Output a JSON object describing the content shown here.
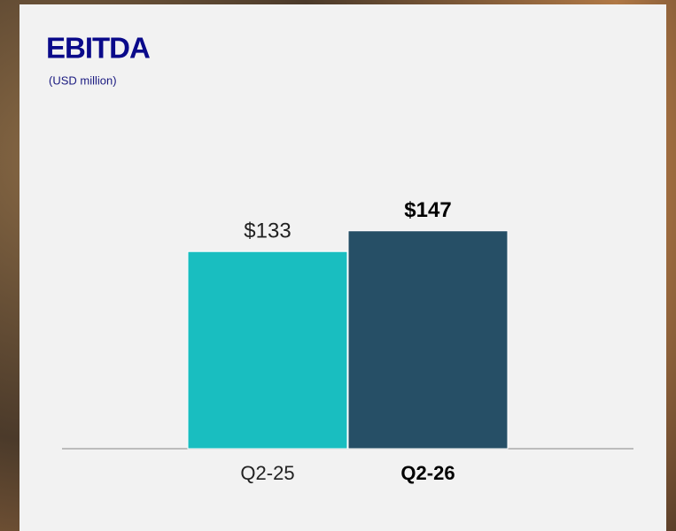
{
  "chart_data": {
    "type": "bar",
    "title": "EBITDA",
    "subtitle": "(USD million)",
    "categories": [
      "Q2-25",
      "Q2-26"
    ],
    "values": [
      133,
      147
    ],
    "value_labels": [
      "$133",
      "$147"
    ],
    "colors": [
      "#19bec0",
      "#264f66"
    ]
  }
}
